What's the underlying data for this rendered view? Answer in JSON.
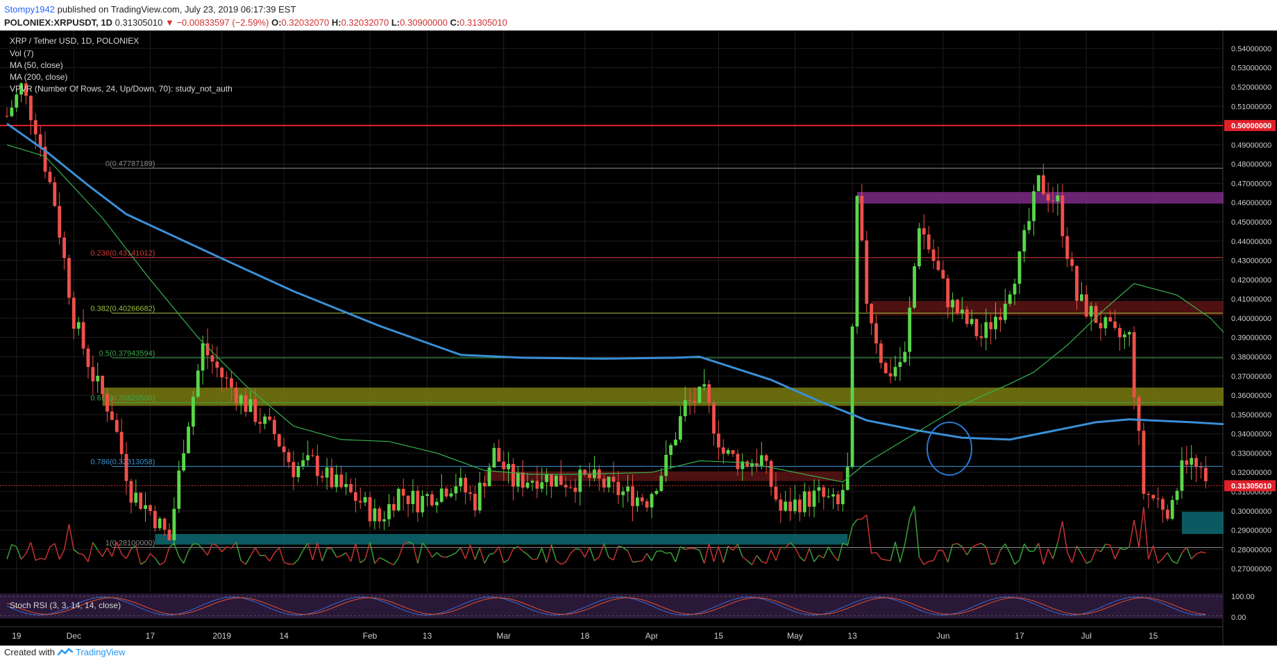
{
  "header": {
    "user": "Stompy1942",
    "published_text": "published on TradingView.com, July 23, 2019 06:17:39 EST",
    "symbol": "POLONIEX:XRPUSDT, 1D",
    "last": "0.31305010",
    "change": "▼ −0.00833597 (−2.59%)",
    "o_label": "O:",
    "o_value": "0.32032070",
    "h_label": "H:",
    "h_value": "0.32032070",
    "l_label": "L:",
    "l_value": "0.30900000",
    "c_label": "C:",
    "c_value": "0.31305010"
  },
  "studies": {
    "title": "XRP / Tether USD, 1D, POLONIEX",
    "vol": "Vol (7)",
    "ma50": "MA (50, close)",
    "ma200": "MA (200, close)",
    "vpvr": "VPVR (Number Of Rows, 24, Up/Down, 70): study_not_auth",
    "stoch": "Stoch RSI (3, 3, 14, 14, close)"
  },
  "footer": {
    "created_with": "Created with",
    "brand": "TradingView"
  },
  "colors": {
    "up": "#5ad64a",
    "down": "#f0504a",
    "ma200": "#3a8fd6",
    "ma50": "#37b24d",
    "resistance_red": "#e0202a",
    "purple_zone": "#7b2a86",
    "yellow_zone": "#7a7a10",
    "dark_red_zone": "#5a1414",
    "teal_zone": "#0e6a72"
  },
  "chart_data": {
    "type": "candlestick",
    "title": "XRP / Tether USD, 1D, POLONIEX",
    "ylim": [
      0.265,
      0.545
    ],
    "y_ticks": [
      "0.54000000",
      "0.53000000",
      "0.52000000",
      "0.51000000",
      "0.50000000",
      "0.49000000",
      "0.48000000",
      "0.47000000",
      "0.46000000",
      "0.45000000",
      "0.44000000",
      "0.43000000",
      "0.42000000",
      "0.41000000",
      "0.40000000",
      "0.39000000",
      "0.38000000",
      "0.37000000",
      "0.36000000",
      "0.35000000",
      "0.34000000",
      "0.33000000",
      "0.32000000",
      "0.31000000",
      "0.30000000",
      "0.29000000",
      "0.28000000",
      "0.27000000"
    ],
    "x_ticks": [
      {
        "label": "19",
        "day": 2
      },
      {
        "label": "Dec",
        "day": 14
      },
      {
        "label": "17",
        "day": 30
      },
      {
        "label": "2019",
        "day": 45
      },
      {
        "label": "14",
        "day": 58
      },
      {
        "label": "Feb",
        "day": 76
      },
      {
        "label": "13",
        "day": 88
      },
      {
        "label": "Mar",
        "day": 104
      },
      {
        "label": "18",
        "day": 121
      },
      {
        "label": "Apr",
        "day": 135
      },
      {
        "label": "15",
        "day": 149
      },
      {
        "label": "May",
        "day": 165
      },
      {
        "label": "13",
        "day": 177
      },
      {
        "label": "Jun",
        "day": 196
      },
      {
        "label": "17",
        "day": 212
      },
      {
        "label": "Jul",
        "day": 226
      },
      {
        "label": "15",
        "day": 240
      }
    ],
    "current_price": 0.3130501,
    "current_price_label": "0.31305010",
    "resistance_price": 0.5,
    "resistance_label": "0.50000000",
    "fib_levels": [
      {
        "label": "0(0.47787189)",
        "value": 0.47787189,
        "color": "#8a8a8a"
      },
      {
        "label": "0.236(0.43141012)",
        "value": 0.43141012,
        "color": "#d03a3a"
      },
      {
        "label": "0.382(0.40266682)",
        "value": 0.40266682,
        "color": "#9bbf3a"
      },
      {
        "label": "0.5(0.37943594)",
        "value": 0.37943594,
        "color": "#3aa84a"
      },
      {
        "label": "0.618(0.35620506)",
        "value": 0.35620506,
        "color": "#3aa84a"
      },
      {
        "label": "0.786(0.32313058)",
        "value": 0.32313058,
        "color": "#3a90d0"
      },
      {
        "label": "1(0.28100000)",
        "value": 0.281,
        "color": "#8a8a8a"
      }
    ],
    "zones": [
      {
        "name": "purple",
        "y1": 0.4595,
        "y2": 0.4655,
        "x1": 178,
        "x2": 260
      },
      {
        "name": "dark-red-upper",
        "y1": 0.4015,
        "y2": 0.409,
        "x1": 181,
        "x2": 260
      },
      {
        "name": "yellow",
        "y1": 0.3545,
        "y2": 0.364,
        "x1": 20,
        "x2": 260
      },
      {
        "name": "dark-red-lower",
        "y1": 0.3155,
        "y2": 0.3205,
        "x1": 100,
        "x2": 175
      },
      {
        "name": "teal-left",
        "y1": 0.2825,
        "y2": 0.288,
        "x1": 31,
        "x2": 176
      },
      {
        "name": "teal-right",
        "y1": 0.288,
        "y2": 0.2995,
        "x1": 246,
        "x2": 260
      }
    ],
    "ma200": [
      [
        0,
        0.501
      ],
      [
        8,
        0.487
      ],
      [
        17,
        0.469
      ],
      [
        25,
        0.454
      ],
      [
        45,
        0.431
      ],
      [
        60,
        0.414
      ],
      [
        78,
        0.396
      ],
      [
        95,
        0.381
      ],
      [
        108,
        0.3795
      ],
      [
        125,
        0.379
      ],
      [
        140,
        0.3795
      ],
      [
        145,
        0.38
      ],
      [
        150,
        0.376
      ],
      [
        160,
        0.368
      ],
      [
        170,
        0.357
      ],
      [
        180,
        0.347
      ],
      [
        190,
        0.342
      ],
      [
        200,
        0.338
      ],
      [
        210,
        0.337
      ],
      [
        220,
        0.342
      ],
      [
        228,
        0.346
      ],
      [
        235,
        0.3475
      ],
      [
        248,
        0.346
      ],
      [
        255,
        0.345
      ]
    ],
    "ma50": [
      [
        0,
        0.49
      ],
      [
        8,
        0.484
      ],
      [
        20,
        0.452
      ],
      [
        30,
        0.42
      ],
      [
        40,
        0.39
      ],
      [
        50,
        0.365
      ],
      [
        60,
        0.344
      ],
      [
        70,
        0.337
      ],
      [
        80,
        0.336
      ],
      [
        90,
        0.33
      ],
      [
        100,
        0.321
      ],
      [
        110,
        0.319
      ],
      [
        120,
        0.319
      ],
      [
        135,
        0.32
      ],
      [
        145,
        0.326
      ],
      [
        155,
        0.325
      ],
      [
        165,
        0.32
      ],
      [
        175,
        0.315
      ],
      [
        180,
        0.325
      ],
      [
        190,
        0.34
      ],
      [
        200,
        0.355
      ],
      [
        210,
        0.366
      ],
      [
        215,
        0.372
      ],
      [
        222,
        0.386
      ],
      [
        230,
        0.405
      ],
      [
        236,
        0.418
      ],
      [
        245,
        0.412
      ],
      [
        252,
        0.4
      ],
      [
        255,
        0.392
      ]
    ],
    "candles_note": "approximate daily OHLC read from the chart; rendered by script",
    "segments": [
      [
        0,
        0.505
      ],
      [
        3,
        0.52
      ],
      [
        6,
        0.5
      ],
      [
        10,
        0.46
      ],
      [
        14,
        0.4
      ],
      [
        18,
        0.37
      ],
      [
        22,
        0.35
      ],
      [
        26,
        0.31
      ],
      [
        30,
        0.3
      ],
      [
        34,
        0.285
      ],
      [
        37,
        0.335
      ],
      [
        41,
        0.385
      ],
      [
        45,
        0.37
      ],
      [
        50,
        0.355
      ],
      [
        56,
        0.34
      ],
      [
        60,
        0.322
      ],
      [
        64,
        0.325
      ],
      [
        68,
        0.315
      ],
      [
        74,
        0.305
      ],
      [
        78,
        0.295
      ],
      [
        82,
        0.31
      ],
      [
        86,
        0.305
      ],
      [
        90,
        0.31
      ],
      [
        94,
        0.315
      ],
      [
        98,
        0.305
      ],
      [
        102,
        0.33
      ],
      [
        106,
        0.315
      ],
      [
        112,
        0.318
      ],
      [
        118,
        0.315
      ],
      [
        122,
        0.317
      ],
      [
        128,
        0.31
      ],
      [
        134,
        0.306
      ],
      [
        138,
        0.325
      ],
      [
        142,
        0.355
      ],
      [
        146,
        0.36
      ],
      [
        150,
        0.33
      ],
      [
        154,
        0.325
      ],
      [
        158,
        0.327
      ],
      [
        162,
        0.3
      ],
      [
        166,
        0.305
      ],
      [
        170,
        0.308
      ],
      [
        174,
        0.302
      ],
      [
        176,
        0.32
      ],
      [
        178,
        0.46
      ],
      [
        180,
        0.41
      ],
      [
        184,
        0.37
      ],
      [
        188,
        0.38
      ],
      [
        191,
        0.45
      ],
      [
        194,
        0.43
      ],
      [
        197,
        0.41
      ],
      [
        200,
        0.4
      ],
      [
        204,
        0.39
      ],
      [
        208,
        0.405
      ],
      [
        212,
        0.43
      ],
      [
        216,
        0.47
      ],
      [
        220,
        0.46
      ],
      [
        224,
        0.41
      ],
      [
        228,
        0.4
      ],
      [
        232,
        0.39
      ],
      [
        235,
        0.39
      ],
      [
        238,
        0.31
      ],
      [
        241,
        0.305
      ],
      [
        244,
        0.3
      ],
      [
        246,
        0.33
      ],
      [
        248,
        0.325
      ],
      [
        251,
        0.313
      ]
    ]
  }
}
